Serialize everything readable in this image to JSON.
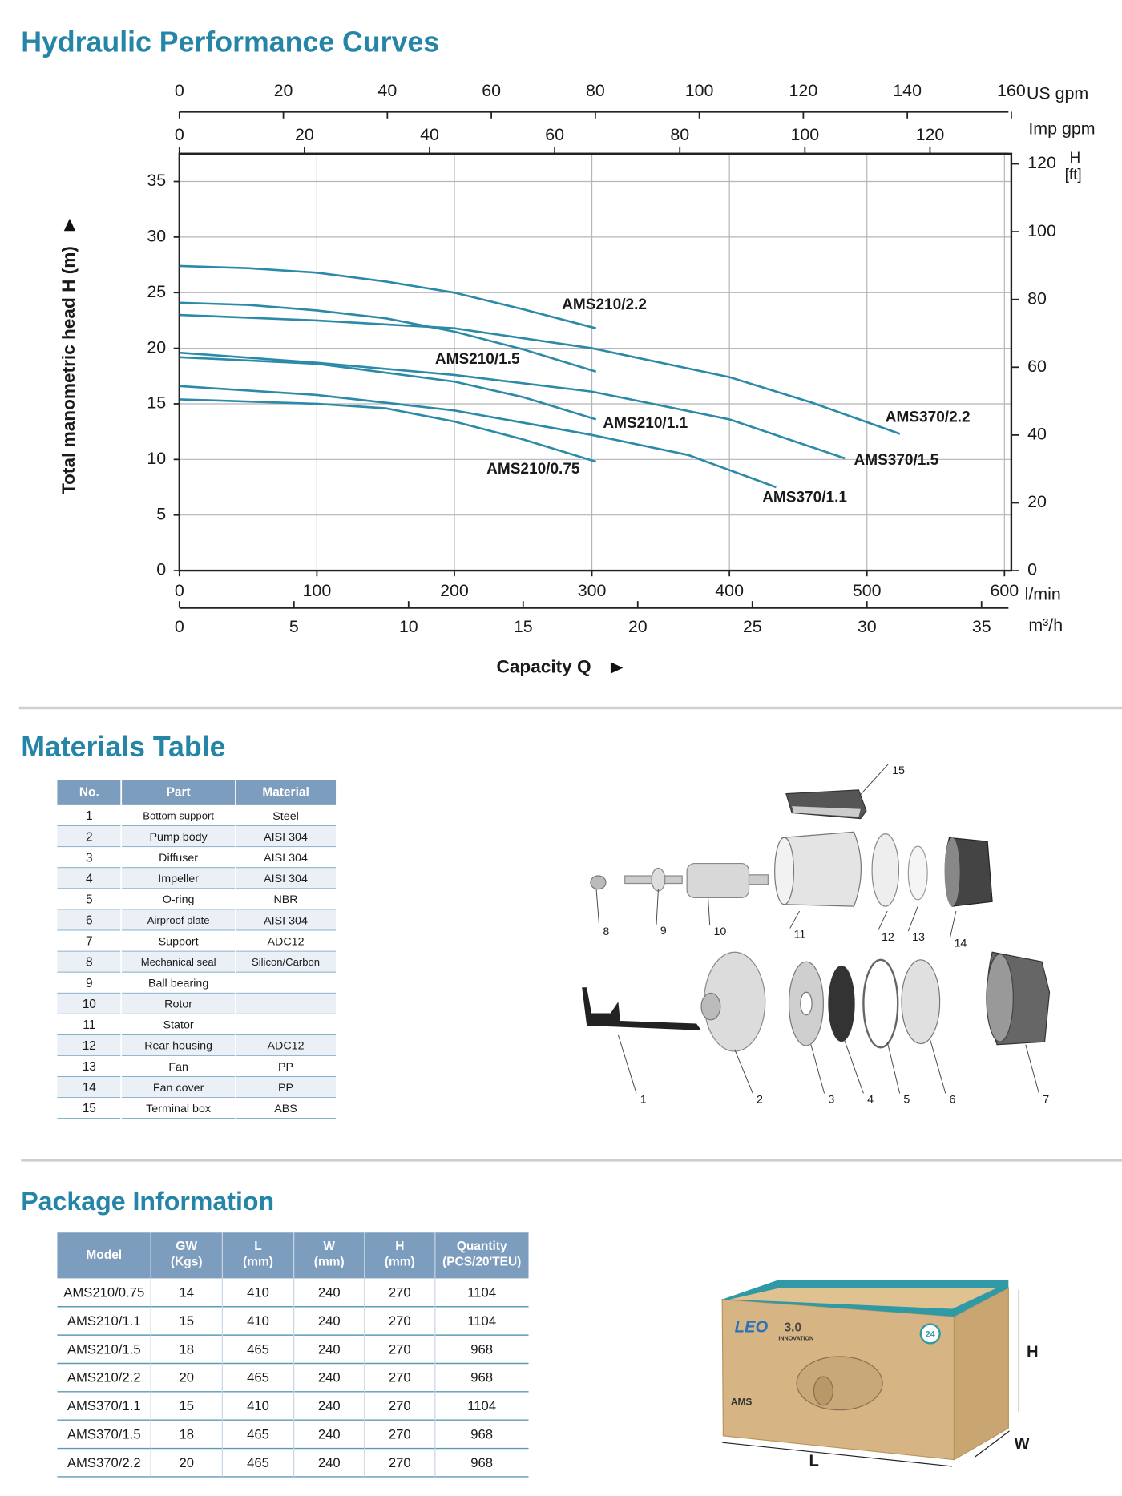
{
  "chart_data": {
    "type": "line",
    "title": "Hydraulic Performance Curves",
    "xlabel": "Capacity Q",
    "ylabel": "Total manometric head H (m)",
    "xunit": "l/min",
    "xlim": [
      0,
      605
    ],
    "xticks": [
      0,
      100,
      200,
      300,
      400,
      500,
      600
    ],
    "ylim": [
      0,
      37.5
    ],
    "yticks": [
      0,
      5,
      10,
      15,
      20,
      25,
      30,
      35
    ],
    "grid": true,
    "color": "#2a8aa8",
    "secondary_axes": [
      {
        "position": "top",
        "unit": "US gpm",
        "lim": [
          0,
          160
        ],
        "ticks": [
          0,
          20,
          40,
          60,
          80,
          100,
          120,
          140,
          160
        ]
      },
      {
        "position": "top",
        "unit": "Imp gpm",
        "lim": [
          0,
          133
        ],
        "ticks": [
          0,
          20,
          40,
          60,
          80,
          100,
          120
        ]
      },
      {
        "position": "bottom",
        "unit": "m³/h",
        "lim": [
          0,
          36.3
        ],
        "ticks": [
          0,
          5,
          10,
          15,
          20,
          25,
          30,
          35
        ]
      },
      {
        "position": "right",
        "unit": [
          "H",
          "[ft]"
        ],
        "lim": [
          0,
          123
        ],
        "ticks": [
          0,
          20,
          40,
          60,
          80,
          100,
          120
        ]
      }
    ],
    "series": [
      {
        "name": "AMS210/0.75",
        "x": [
          0,
          100,
          150,
          200,
          250,
          303
        ],
        "values": [
          15.4,
          15.0,
          14.6,
          13.4,
          11.8,
          9.8
        ]
      },
      {
        "name": "AMS210/1.1",
        "x": [
          0,
          100,
          200,
          250,
          303
        ],
        "values": [
          19.2,
          18.6,
          17.0,
          15.6,
          13.6
        ]
      },
      {
        "name": "AMS210/1.5",
        "x": [
          0,
          50,
          100,
          150,
          200,
          250,
          303
        ],
        "values": [
          24.1,
          23.9,
          23.4,
          22.7,
          21.5,
          19.9,
          17.9
        ]
      },
      {
        "name": "AMS210/2.2",
        "x": [
          0,
          50,
          100,
          150,
          200,
          250,
          303
        ],
        "values": [
          27.4,
          27.2,
          26.8,
          26.0,
          25.0,
          23.5,
          21.8
        ]
      },
      {
        "name": "AMS370/1.1",
        "x": [
          0,
          100,
          200,
          300,
          370,
          434
        ],
        "values": [
          16.6,
          15.8,
          14.4,
          12.2,
          10.4,
          7.5
        ]
      },
      {
        "name": "AMS370/1.5",
        "x": [
          0,
          100,
          200,
          300,
          400,
          484
        ],
        "values": [
          19.6,
          18.7,
          17.6,
          16.1,
          13.6,
          10.1
        ]
      },
      {
        "name": "AMS370/2.2",
        "x": [
          0,
          100,
          200,
          300,
          400,
          460,
          524
        ],
        "values": [
          23.0,
          22.5,
          21.8,
          20.0,
          17.4,
          15.1,
          12.3
        ]
      }
    ]
  },
  "materials": {
    "title": "Materials Table",
    "columns": [
      "No.",
      "Part",
      "Material"
    ],
    "rows": [
      [
        1,
        "Bottom support",
        "Steel"
      ],
      [
        2,
        "Pump body",
        "AISI 304"
      ],
      [
        3,
        "Diffuser",
        "AISI 304"
      ],
      [
        4,
        "Impeller",
        "AISI 304"
      ],
      [
        5,
        "O-ring",
        "NBR"
      ],
      [
        6,
        "Airproof plate",
        "AISI 304"
      ],
      [
        7,
        "Support",
        "ADC12"
      ],
      [
        8,
        "Mechanical seal",
        "Silicon/Carbon"
      ],
      [
        9,
        "Ball bearing",
        null
      ],
      [
        10,
        "Rotor",
        null
      ],
      [
        11,
        "Stator",
        null
      ],
      [
        12,
        "Rear housing",
        "ADC12"
      ],
      [
        13,
        "Fan",
        "PP"
      ],
      [
        14,
        "Fan cover",
        "PP"
      ],
      [
        15,
        "Terminal box",
        "ABS"
      ]
    ]
  },
  "package": {
    "title": "Package Information",
    "columns": [
      [
        "Model"
      ],
      [
        "GW",
        "(Kgs)"
      ],
      [
        "L",
        "(mm)"
      ],
      [
        "W",
        "(mm)"
      ],
      [
        "H",
        "(mm)"
      ],
      [
        "Quantity",
        "(PCS/20'TEU)"
      ]
    ],
    "rows": [
      [
        "AMS210/0.75",
        14,
        410,
        240,
        270,
        1104
      ],
      [
        "AMS210/1.1",
        15,
        410,
        240,
        270,
        1104
      ],
      [
        "AMS210/1.5",
        18,
        465,
        240,
        270,
        968
      ],
      [
        "AMS210/2.2",
        20,
        465,
        240,
        270,
        968
      ],
      [
        "AMS370/1.1",
        15,
        410,
        240,
        270,
        1104
      ],
      [
        "AMS370/1.5",
        18,
        465,
        240,
        270,
        968
      ],
      [
        "AMS370/2.2",
        20,
        465,
        240,
        270,
        968
      ]
    ],
    "box": {
      "dimensions": [
        "L",
        "W",
        "H"
      ],
      "brand": "LEO",
      "version": "3.0",
      "tagline": "INNOVATION",
      "model": "AMS",
      "badge": "24"
    }
  }
}
